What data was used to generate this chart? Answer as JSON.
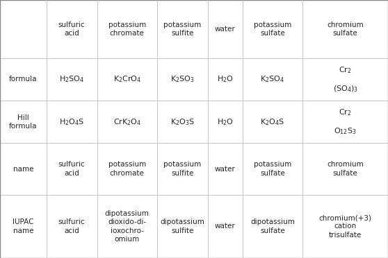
{
  "col_headers": [
    "sulfuric\nacid",
    "potassium\nchromate",
    "potassium\nsulfite",
    "water",
    "potassium\nsulfate",
    "chromium\nsulfate"
  ],
  "row_headers": [
    "formula",
    "Hill\nformula",
    "name",
    "IUPAC\nname"
  ],
  "formula_cells": [
    "$\\mathrm{H_2SO_4}$",
    "$\\mathrm{K_2CrO_4}$",
    "$\\mathrm{K_2SO_3}$",
    "$\\mathrm{H_2O}$",
    "$\\mathrm{K_2SO_4}$",
    "MULTILINE_CR2SO43"
  ],
  "hill_cells": [
    "$\\mathrm{H_2O_4S}$",
    "$\\mathrm{CrK_2O_4}$",
    "$\\mathrm{K_2O_3S}$",
    "$\\mathrm{H_2O}$",
    "$\\mathrm{K_2O_4S}$",
    "MULTILINE_CR2O12S3"
  ],
  "name_cells": [
    "sulfuric\nacid",
    "potassium\nchromate",
    "potassium\nsulfite",
    "water",
    "potassium\nsulfate",
    "chromium\nsulfate"
  ],
  "iupac_cells": [
    "sulfuric\nacid",
    "dipotassium\ndioxido-di-\nioxochro-\nomium",
    "dipotassium\nsulfite",
    "water",
    "dipotassium\nsulfate",
    "chromium(+3)\ncation\ntrisulfate"
  ],
  "bg_color": "#ffffff",
  "text_color": "#232323",
  "line_color_outer": "#888888",
  "line_color_inner": "#bbbbbb",
  "font_size": 7.5,
  "formula_font_size": 8.0
}
